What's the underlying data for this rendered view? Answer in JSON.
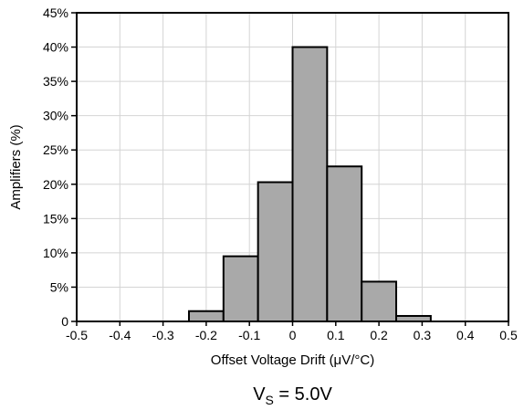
{
  "chart_data": {
    "type": "bar",
    "title": "",
    "xlabel": "Offset Voltage Drift (μV/°C)",
    "ylabel": "Amplifiers (%)",
    "xlim": [
      -0.5,
      0.5
    ],
    "ylim": [
      0,
      45
    ],
    "grid": true,
    "bin_width": 0.08,
    "x": [
      -0.16,
      -0.08,
      0.0,
      0.08,
      0.16,
      0.24,
      0.32
    ],
    "bins": [
      {
        "from": -0.24,
        "to": -0.16,
        "value": 1.5
      },
      {
        "from": -0.16,
        "to": -0.08,
        "value": 9.5
      },
      {
        "from": -0.08,
        "to": 0.0,
        "value": 20.3
      },
      {
        "from": 0.0,
        "to": 0.08,
        "value": 40.0
      },
      {
        "from": 0.08,
        "to": 0.16,
        "value": 22.6
      },
      {
        "from": 0.16,
        "to": 0.24,
        "value": 5.8
      },
      {
        "from": 0.24,
        "to": 0.32,
        "value": 0.8
      }
    ],
    "x_ticks": [
      "-0.5",
      "-0.4",
      "-0.3",
      "-0.2",
      "-0.1",
      "0",
      "0.1",
      "0.2",
      "0.3",
      "0.4",
      "0.5"
    ],
    "x_tick_values": [
      -0.5,
      -0.4,
      -0.3,
      -0.2,
      -0.1,
      0,
      0.1,
      0.2,
      0.3,
      0.4,
      0.5
    ],
    "y_ticks": [
      "0",
      "5%",
      "10%",
      "15%",
      "20%",
      "25%",
      "30%",
      "35%",
      "40%",
      "45%"
    ],
    "y_tick_values": [
      0,
      5,
      10,
      15,
      20,
      25,
      30,
      35,
      40,
      45
    ],
    "bar_color": "#a9a9a9",
    "grid_color": "#d4d4d4"
  },
  "condition": {
    "main": "V",
    "subscript": "S",
    "rest": " = 5.0V"
  }
}
